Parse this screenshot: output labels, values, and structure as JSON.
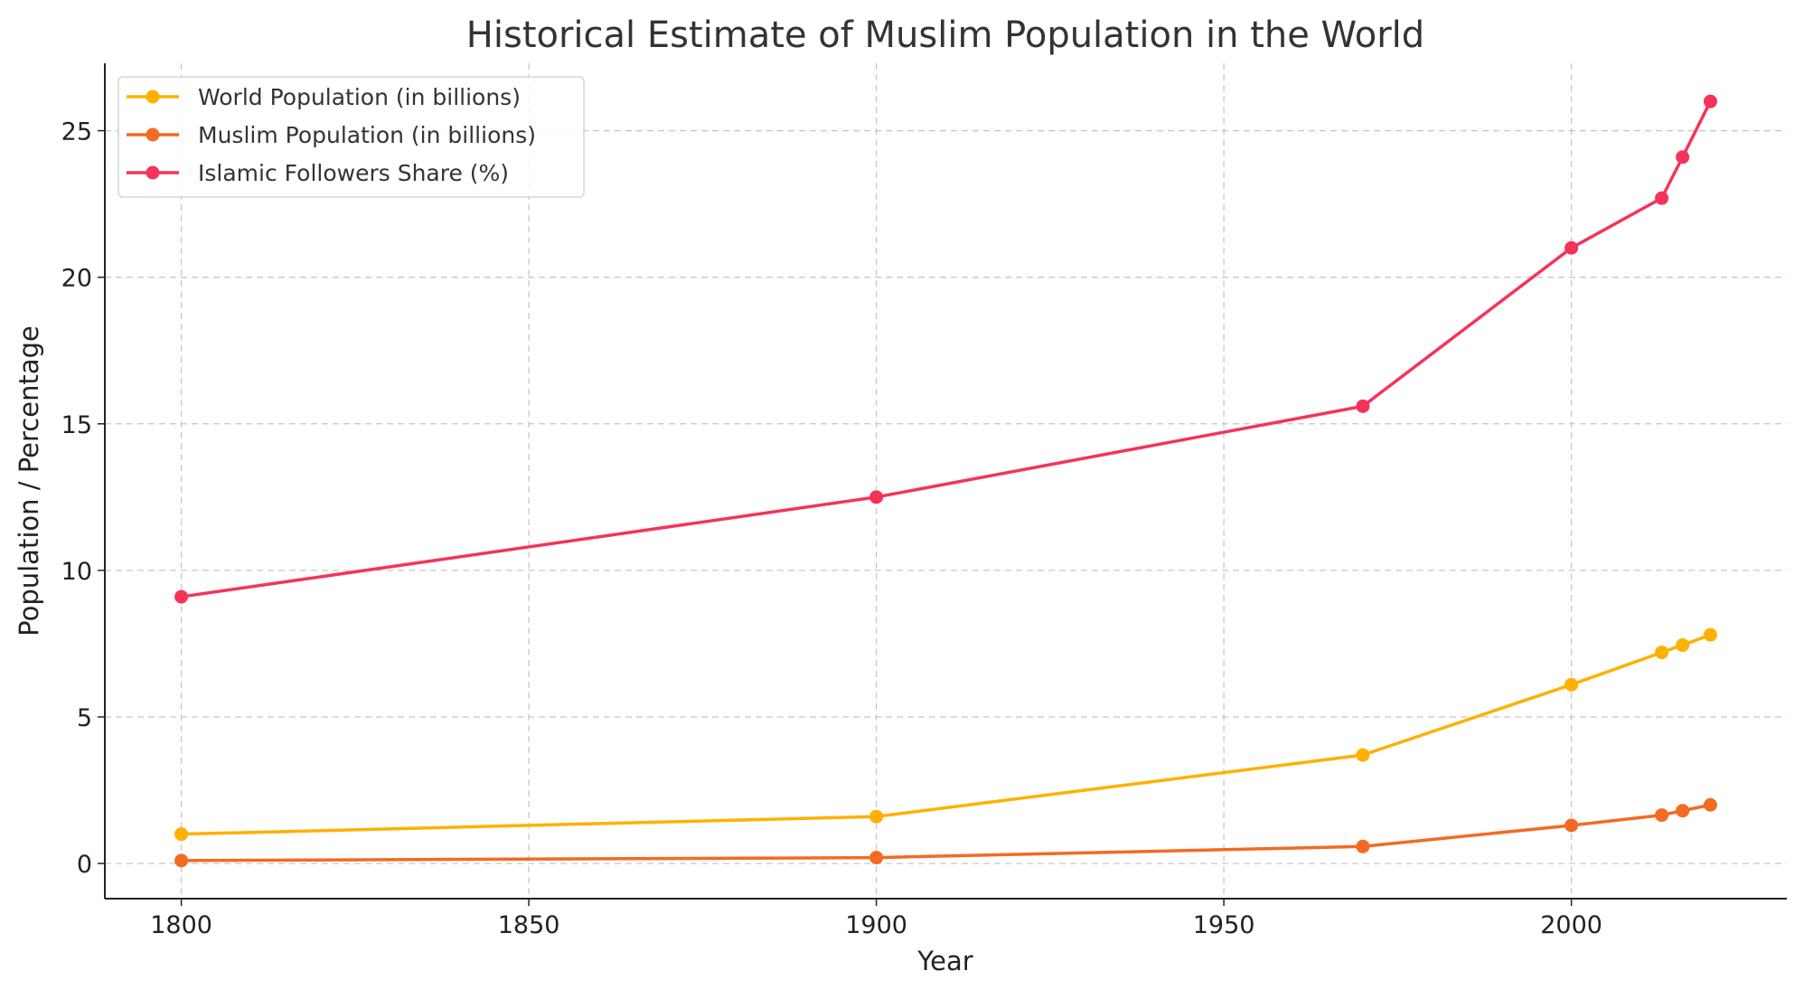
{
  "chart_data": {
    "type": "line",
    "title": "Historical Estimate of Muslim Population in the World",
    "xlabel": "Year",
    "ylabel": "Population / Percentage",
    "x": [
      1800,
      1900,
      1970,
      2000,
      2013,
      2016,
      2020
    ],
    "xlim": [
      1789,
      2031
    ],
    "ylim": [
      -1.2,
      27.3
    ],
    "xticks": [
      1800,
      1850,
      1900,
      1950,
      2000
    ],
    "yticks": [
      0,
      5,
      10,
      15,
      20,
      25
    ],
    "grid": true,
    "legend_position": "top-left",
    "series": [
      {
        "name": "World Population (in billions)",
        "color": "#FFB000",
        "values": [
          1.0,
          1.6,
          3.7,
          6.1,
          7.2,
          7.45,
          7.8
        ]
      },
      {
        "name": "Muslim Population (in billions)",
        "color": "#F26B21",
        "values": [
          0.1,
          0.2,
          0.58,
          1.3,
          1.65,
          1.8,
          2.0
        ]
      },
      {
        "name": "Islamic Followers Share (%)",
        "color": "#F5335A",
        "values": [
          9.1,
          12.5,
          15.6,
          21.0,
          22.7,
          24.1,
          26.0
        ]
      }
    ]
  }
}
